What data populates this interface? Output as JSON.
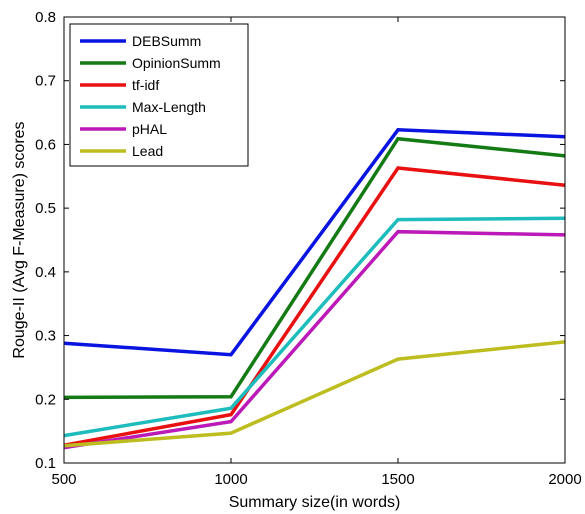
{
  "chart_data": {
    "type": "line",
    "title": "",
    "xlabel": "Summary size(in words)",
    "ylabel": "Rouge-II (Avg F-Measure) scores",
    "x": [
      500,
      1000,
      1500,
      2000
    ],
    "xlim": [
      500,
      2000
    ],
    "ylim": [
      0.1,
      0.8
    ],
    "xticks": [
      "500",
      "1000",
      "1500",
      "2000"
    ],
    "yticks": [
      "0.1",
      "0.2",
      "0.3",
      "0.4",
      "0.5",
      "0.6",
      "0.7",
      "0.8"
    ],
    "grid": false,
    "legend_position": "top-left",
    "series": [
      {
        "name": "DEBSumm",
        "color": "#0a14e0",
        "values": [
          0.288,
          0.27,
          0.623,
          0.612
        ]
      },
      {
        "name": "OpinionSumm",
        "color": "#147a14",
        "values": [
          0.203,
          0.204,
          0.609,
          0.582
        ]
      },
      {
        "name": "tf-idf",
        "color": "#e81010",
        "values": [
          0.128,
          0.176,
          0.563,
          0.536
        ]
      },
      {
        "name": "Max-Length",
        "color": "#1ebcbc",
        "values": [
          0.143,
          0.186,
          0.482,
          0.484
        ]
      },
      {
        "name": "pHAL",
        "color": "#bb1ab8",
        "values": [
          0.124,
          0.165,
          0.463,
          0.458
        ]
      },
      {
        "name": "Lead",
        "color": "#bdbd20",
        "values": [
          0.127,
          0.147,
          0.263,
          0.29
        ]
      }
    ]
  }
}
